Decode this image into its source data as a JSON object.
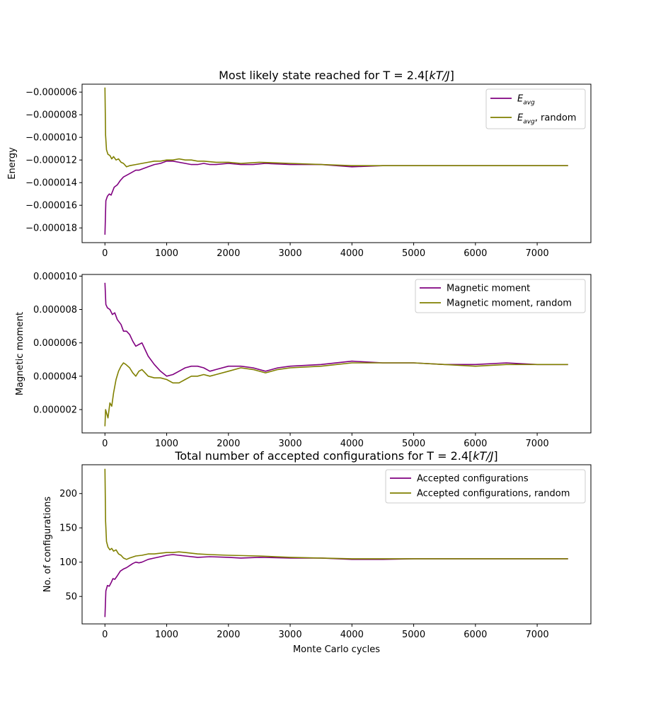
{
  "chart_data": [
    {
      "type": "line",
      "title": "Most likely state reached for T = 2.4[kT/J]",
      "xlabel": "",
      "ylabel": "Energy",
      "xlim": [
        -370,
        7870
      ],
      "ylim": [
        -1.93e-05,
        -5.3e-06
      ],
      "xticks": [
        "0",
        "1000",
        "2000",
        "3000",
        "4000",
        "5000",
        "6000",
        "7000"
      ],
      "yticks": [
        "−0.000006",
        "−0.000008",
        "−0.000010",
        "−0.000012",
        "−0.000014",
        "−0.000016",
        "−0.000018"
      ],
      "legend_position": "top-right",
      "legend": [
        "E_avg",
        "E_avg, random"
      ],
      "series": [
        {
          "name": "E_avg",
          "color": "#800080",
          "x": [
            0,
            15,
            40,
            70,
            100,
            150,
            200,
            250,
            300,
            400,
            500,
            550,
            600,
            700,
            800,
            900,
            1000,
            1100,
            1200,
            1300,
            1400,
            1500,
            1600,
            1700,
            1800,
            2000,
            2200,
            2400,
            2600,
            3000,
            3500,
            4000,
            4500,
            5000,
            5500,
            6000,
            6500,
            7000,
            7500
          ],
          "y": [
            -1.86e-05,
            -1.56e-05,
            -1.52e-05,
            -1.5e-05,
            -1.51e-05,
            -1.44e-05,
            -1.42e-05,
            -1.38e-05,
            -1.35e-05,
            -1.32e-05,
            -1.29e-05,
            -1.29e-05,
            -1.28e-05,
            -1.26e-05,
            -1.24e-05,
            -1.23e-05,
            -1.21e-05,
            -1.21e-05,
            -1.22e-05,
            -1.23e-05,
            -1.24e-05,
            -1.24e-05,
            -1.23e-05,
            -1.24e-05,
            -1.24e-05,
            -1.23e-05,
            -1.24e-05,
            -1.24e-05,
            -1.23e-05,
            -1.24e-05,
            -1.24e-05,
            -1.26e-05,
            -1.25e-05,
            -1.25e-05,
            -1.25e-05,
            -1.25e-05,
            -1.25e-05,
            -1.25e-05,
            -1.25e-05
          ]
        },
        {
          "name": "E_avg, random",
          "color": "#808000",
          "x": [
            0,
            10,
            25,
            50,
            80,
            110,
            140,
            180,
            220,
            260,
            300,
            350,
            400,
            500,
            600,
            700,
            800,
            900,
            1000,
            1100,
            1200,
            1300,
            1400,
            1500,
            1600,
            1800,
            2000,
            2200,
            2500,
            3000,
            3500,
            4000,
            4500,
            5000,
            5500,
            6000,
            6500,
            7000,
            7500
          ],
          "y": [
            -5.6e-06,
            -9.8e-06,
            -1.11e-05,
            -1.15e-05,
            -1.16e-05,
            -1.19e-05,
            -1.17e-05,
            -1.2e-05,
            -1.19e-05,
            -1.22e-05,
            -1.23e-05,
            -1.26e-05,
            -1.25e-05,
            -1.24e-05,
            -1.23e-05,
            -1.22e-05,
            -1.21e-05,
            -1.21e-05,
            -1.2e-05,
            -1.2e-05,
            -1.19e-05,
            -1.2e-05,
            -1.2e-05,
            -1.21e-05,
            -1.21e-05,
            -1.22e-05,
            -1.22e-05,
            -1.23e-05,
            -1.22e-05,
            -1.23e-05,
            -1.24e-05,
            -1.25e-05,
            -1.25e-05,
            -1.25e-05,
            -1.25e-05,
            -1.25e-05,
            -1.25e-05,
            -1.25e-05,
            -1.25e-05
          ]
        }
      ]
    },
    {
      "type": "line",
      "title": "",
      "xlabel": "",
      "ylabel": "Magnetic moment",
      "xlim": [
        -370,
        7870
      ],
      "ylim": [
        6e-07,
        1.01e-05
      ],
      "xticks": [
        "0",
        "1000",
        "2000",
        "3000",
        "4000",
        "5000",
        "6000",
        "7000"
      ],
      "yticks": [
        "0.000010",
        "0.000008",
        "0.000006",
        "0.000004",
        "0.000002"
      ],
      "legend_position": "top-right",
      "legend": [
        "Magnetic moment",
        "Magnetic moment, random"
      ],
      "series": [
        {
          "name": "Magnetic moment",
          "color": "#800080",
          "x": [
            0,
            15,
            40,
            80,
            120,
            160,
            200,
            260,
            300,
            350,
            400,
            450,
            500,
            550,
            600,
            650,
            700,
            800,
            900,
            1000,
            1100,
            1200,
            1300,
            1400,
            1500,
            1600,
            1700,
            1800,
            2000,
            2200,
            2400,
            2600,
            2800,
            3000,
            3500,
            4000,
            4500,
            5000,
            5500,
            6000,
            6500,
            7000,
            7500
          ],
          "y": [
            9.6e-06,
            8.3e-06,
            8.1e-06,
            8e-06,
            7.7e-06,
            7.8e-06,
            7.4e-06,
            7.1e-06,
            6.7e-06,
            6.7e-06,
            6.5e-06,
            6.1e-06,
            5.8e-06,
            5.9e-06,
            6e-06,
            5.6e-06,
            5.2e-06,
            4.7e-06,
            4.3e-06,
            4e-06,
            4.1e-06,
            4.3e-06,
            4.5e-06,
            4.6e-06,
            4.6e-06,
            4.5e-06,
            4.3e-06,
            4.4e-06,
            4.6e-06,
            4.6e-06,
            4.5e-06,
            4.3e-06,
            4.5e-06,
            4.6e-06,
            4.7e-06,
            4.9e-06,
            4.8e-06,
            4.8e-06,
            4.7e-06,
            4.7e-06,
            4.8e-06,
            4.7e-06,
            4.7e-06
          ]
        },
        {
          "name": "Magnetic moment, random",
          "color": "#808000",
          "x": [
            0,
            10,
            25,
            50,
            80,
            110,
            140,
            180,
            220,
            260,
            300,
            340,
            400,
            450,
            500,
            550,
            600,
            650,
            700,
            800,
            900,
            1000,
            1100,
            1200,
            1300,
            1400,
            1500,
            1600,
            1700,
            1800,
            2000,
            2200,
            2400,
            2600,
            2800,
            3000,
            3500,
            4000,
            4500,
            5000,
            5500,
            6000,
            6500,
            7000,
            7500
          ],
          "y": [
            1e-06,
            2e-06,
            1.8e-06,
            1.5e-06,
            2.4e-06,
            2.2e-06,
            3e-06,
            3.8e-06,
            4.3e-06,
            4.6e-06,
            4.8e-06,
            4.7e-06,
            4.5e-06,
            4.2e-06,
            4e-06,
            4.3e-06,
            4.4e-06,
            4.2e-06,
            4e-06,
            3.9e-06,
            3.9e-06,
            3.8e-06,
            3.6e-06,
            3.6e-06,
            3.8e-06,
            4e-06,
            4e-06,
            4.1e-06,
            4e-06,
            4.1e-06,
            4.3e-06,
            4.5e-06,
            4.4e-06,
            4.2e-06,
            4.4e-06,
            4.5e-06,
            4.6e-06,
            4.8e-06,
            4.8e-06,
            4.8e-06,
            4.7e-06,
            4.6e-06,
            4.7e-06,
            4.7e-06,
            4.7e-06
          ]
        }
      ]
    },
    {
      "type": "line",
      "title": "Total number of accepted configurations for T = 2.4[kT/J]",
      "xlabel": "Monte Carlo cycles",
      "ylabel": "No. of configurations",
      "xlim": [
        -370,
        7870
      ],
      "ylim": [
        10,
        242
      ],
      "xticks": [
        "0",
        "1000",
        "2000",
        "3000",
        "4000",
        "5000",
        "6000",
        "7000"
      ],
      "yticks": [
        "200",
        "150",
        "100",
        "50"
      ],
      "legend_position": "top-right",
      "legend": [
        "Accepted configurations",
        "Accepted configurations, random"
      ],
      "series": [
        {
          "name": "Accepted configurations",
          "color": "#800080",
          "x": [
            0,
            15,
            40,
            70,
            100,
            130,
            160,
            200,
            250,
            300,
            350,
            400,
            450,
            500,
            550,
            600,
            700,
            800,
            900,
            1000,
            1100,
            1200,
            1300,
            1500,
            1700,
            2000,
            2200,
            2500,
            3000,
            3500,
            4000,
            4500,
            5000,
            5500,
            6000,
            6500,
            7000,
            7500
          ],
          "y": [
            20,
            58,
            66,
            65,
            70,
            76,
            75,
            80,
            87,
            90,
            92,
            95,
            98,
            100,
            99,
            100,
            104,
            106,
            108,
            110,
            111,
            110,
            109,
            107,
            108,
            107,
            106,
            107,
            106,
            106,
            104,
            104,
            105,
            105,
            105,
            105,
            105,
            105
          ]
        },
        {
          "name": "Accepted configurations, random",
          "color": "#808000",
          "x": [
            0,
            10,
            25,
            50,
            80,
            110,
            140,
            180,
            220,
            260,
            300,
            350,
            400,
            500,
            600,
            700,
            800,
            900,
            1000,
            1100,
            1200,
            1300,
            1500,
            1700,
            2000,
            2500,
            3000,
            3500,
            4000,
            4500,
            5000,
            5500,
            6000,
            6500,
            7000,
            7500
          ],
          "y": [
            236,
            160,
            130,
            122,
            118,
            120,
            116,
            118,
            112,
            110,
            106,
            104,
            106,
            109,
            110,
            112,
            112,
            113,
            114,
            114,
            115,
            114,
            112,
            111,
            110,
            109,
            107,
            106,
            105,
            105,
            105,
            105,
            105,
            105,
            105,
            105
          ]
        }
      ]
    }
  ]
}
